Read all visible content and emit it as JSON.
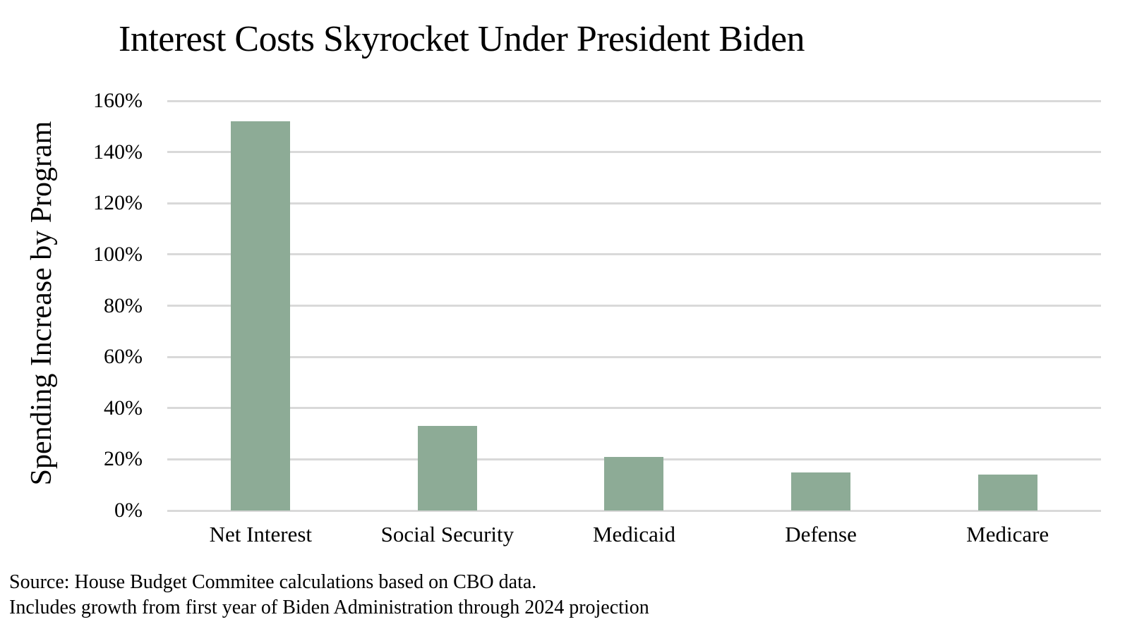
{
  "page": {
    "title": "Interest Costs Skyrocket Under President Biden",
    "source_line1": "Source: House Budget Commitee calculations based on CBO data.",
    "source_line2": "Includes growth from first year of Biden Administration through 2024 projection"
  },
  "colors": {
    "bar": "#8DAB96",
    "gridline": "#D9D9D9",
    "text": "#000000",
    "background": "#FFFFFF"
  },
  "chart_data": {
    "type": "bar",
    "title": "Interest Costs Skyrocket Under President Biden",
    "categories": [
      "Net Interest",
      "Social Security",
      "Medicaid",
      "Defense",
      "Medicare"
    ],
    "values": [
      152,
      33,
      21,
      15,
      14
    ],
    "unit": "%",
    "xlabel": "",
    "ylabel": "Spending Increase by Program",
    "ylim": [
      0,
      160
    ],
    "ytick_step": 20,
    "ytick_labels": [
      "0%",
      "20%",
      "40%",
      "60%",
      "80%",
      "100%",
      "120%",
      "140%",
      "160%"
    ],
    "grid": true,
    "legend": false,
    "source_note": "Source: House Budget Commitee calculations based on CBO data. Includes growth from first year of Biden Administration through 2024 projection"
  }
}
